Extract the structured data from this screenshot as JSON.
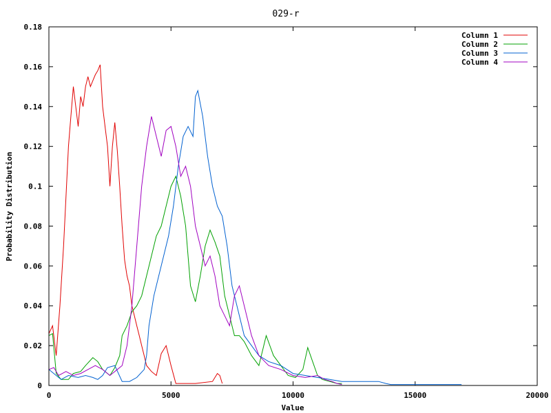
{
  "chart_data": {
    "type": "line",
    "title": "029-r",
    "xlabel": "Value",
    "ylabel": "Probability Distribution",
    "xlim": [
      0,
      20000
    ],
    "ylim": [
      0,
      0.18
    ],
    "xticks": [
      0,
      5000,
      10000,
      15000,
      20000
    ],
    "xtick_labels": [
      "0",
      "5000",
      "10000",
      "15000",
      "20000"
    ],
    "yticks": [
      0,
      0.02,
      0.04,
      0.06,
      0.08,
      0.1,
      0.12,
      0.14,
      0.16,
      0.18
    ],
    "ytick_labels": [
      "0",
      "0.02",
      "0.04",
      "0.06",
      "0.08",
      "0.1",
      "0.12",
      "0.14",
      "0.16",
      "0.18"
    ],
    "grid": false,
    "legend_position": "top-right",
    "series": [
      {
        "name": "Column 1",
        "color": "#e00000",
        "x": [
          0,
          150,
          300,
          450,
          600,
          800,
          900,
          1000,
          1100,
          1200,
          1300,
          1400,
          1500,
          1600,
          1700,
          1800,
          1900,
          2000,
          2100,
          2200,
          2300,
          2400,
          2500,
          2600,
          2700,
          2800,
          2900,
          3000,
          3100,
          3200,
          3300,
          3400,
          3500,
          3600,
          3700,
          3800,
          3900,
          4000,
          4200,
          4400,
          4600,
          4800,
          5000,
          5200,
          6000,
          6700,
          6900,
          7000,
          7100
        ],
        "y": [
          0.026,
          0.03,
          0.015,
          0.04,
          0.07,
          0.12,
          0.135,
          0.15,
          0.14,
          0.13,
          0.145,
          0.14,
          0.15,
          0.155,
          0.15,
          0.153,
          0.156,
          0.158,
          0.161,
          0.14,
          0.13,
          0.12,
          0.1,
          0.12,
          0.132,
          0.118,
          0.1,
          0.08,
          0.063,
          0.055,
          0.05,
          0.04,
          0.035,
          0.03,
          0.025,
          0.02,
          0.015,
          0.01,
          0.007,
          0.005,
          0.016,
          0.02,
          0.01,
          0.001,
          0.001,
          0.002,
          0.006,
          0.005,
          0.001
        ]
      },
      {
        "name": "Column 2",
        "color": "#00a000",
        "x": [
          0,
          150,
          300,
          500,
          800,
          1000,
          1300,
          1500,
          1800,
          2000,
          2200,
          2500,
          2700,
          2900,
          3000,
          3200,
          3400,
          3600,
          3800,
          4000,
          4200,
          4400,
          4600,
          4800,
          5000,
          5200,
          5400,
          5600,
          5800,
          6000,
          6200,
          6400,
          6600,
          6800,
          7000,
          7200,
          7400,
          7600,
          7800,
          8000,
          8300,
          8600,
          8900,
          9200,
          9500,
          9800,
          10100,
          10400,
          10600,
          10800,
          11000,
          11200,
          11500,
          11800,
          12000
        ],
        "y": [
          0.025,
          0.026,
          0.006,
          0.003,
          0.003,
          0.006,
          0.007,
          0.01,
          0.014,
          0.012,
          0.008,
          0.005,
          0.009,
          0.015,
          0.025,
          0.03,
          0.037,
          0.04,
          0.045,
          0.055,
          0.065,
          0.075,
          0.08,
          0.09,
          0.1,
          0.105,
          0.095,
          0.08,
          0.05,
          0.042,
          0.055,
          0.07,
          0.078,
          0.072,
          0.065,
          0.045,
          0.035,
          0.025,
          0.025,
          0.022,
          0.015,
          0.01,
          0.025,
          0.015,
          0.01,
          0.005,
          0.004,
          0.008,
          0.019,
          0.012,
          0.005,
          0.003,
          0.002,
          0.001,
          0.001
        ]
      },
      {
        "name": "Column 3",
        "color": "#0060d0",
        "x": [
          0,
          200,
          500,
          800,
          1200,
          1500,
          1800,
          2000,
          2200,
          2400,
          2700,
          3000,
          3300,
          3600,
          3900,
          4000,
          4100,
          4300,
          4500,
          4700,
          4900,
          5100,
          5300,
          5500,
          5700,
          5900,
          6000,
          6100,
          6300,
          6500,
          6700,
          6900,
          7100,
          7300,
          7500,
          7700,
          8000,
          8300,
          8600,
          9000,
          9500,
          10000,
          10500,
          11000,
          11500,
          12000,
          12500,
          13000,
          13500,
          13800,
          14000,
          15000,
          16000,
          16900
        ],
        "y": [
          0.008,
          0.006,
          0.003,
          0.005,
          0.004,
          0.005,
          0.004,
          0.003,
          0.005,
          0.009,
          0.01,
          0.002,
          0.002,
          0.004,
          0.008,
          0.015,
          0.03,
          0.045,
          0.055,
          0.065,
          0.075,
          0.09,
          0.11,
          0.125,
          0.13,
          0.125,
          0.145,
          0.148,
          0.135,
          0.115,
          0.1,
          0.09,
          0.085,
          0.07,
          0.05,
          0.04,
          0.025,
          0.02,
          0.015,
          0.012,
          0.01,
          0.006,
          0.005,
          0.004,
          0.003,
          0.002,
          0.002,
          0.002,
          0.002,
          0.001,
          0.0005,
          0.0005,
          0.0005,
          0.0005
        ]
      },
      {
        "name": "Column 4",
        "color": "#a000c0",
        "x": [
          0,
          200,
          400,
          700,
          1000,
          1300,
          1600,
          1900,
          2200,
          2500,
          2800,
          3000,
          3200,
          3400,
          3600,
          3800,
          4000,
          4200,
          4400,
          4600,
          4800,
          5000,
          5200,
          5400,
          5600,
          5800,
          6000,
          6200,
          6400,
          6600,
          6800,
          7000,
          7200,
          7400,
          7600,
          7800,
          8000,
          8300,
          8600,
          9000,
          9500,
          10000,
          10500,
          11000,
          11300,
          11600,
          11800,
          12000
        ],
        "y": [
          0.008,
          0.009,
          0.005,
          0.007,
          0.005,
          0.006,
          0.008,
          0.01,
          0.008,
          0.005,
          0.008,
          0.01,
          0.02,
          0.04,
          0.07,
          0.1,
          0.12,
          0.135,
          0.125,
          0.115,
          0.128,
          0.13,
          0.12,
          0.105,
          0.11,
          0.1,
          0.08,
          0.07,
          0.06,
          0.065,
          0.055,
          0.04,
          0.035,
          0.03,
          0.045,
          0.05,
          0.04,
          0.025,
          0.015,
          0.01,
          0.008,
          0.005,
          0.004,
          0.005,
          0.003,
          0.002,
          0.001,
          0.0005
        ]
      }
    ]
  }
}
